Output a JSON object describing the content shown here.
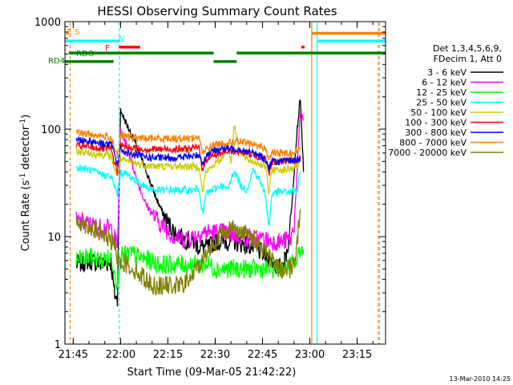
{
  "chart_data": {
    "type": "line",
    "title": "HESSI Observing Summary Count Rates",
    "xlabel": "Start Time (09-Mar-05 21:42:22)",
    "ylabel_main": "Count Rate (s",
    "ylabel_sup": "-1",
    "ylabel_mid": " detector",
    "ylabel_end": ")",
    "y_scale": "log",
    "xlim_minutes": [
      1302.37,
      1404
    ],
    "ylim": [
      1,
      1000
    ],
    "x_ticks": [
      {
        "label": "21:45",
        "value": 1305
      },
      {
        "label": "22:00",
        "value": 1320
      },
      {
        "label": "22:15",
        "value": 1335
      },
      {
        "label": "22:30",
        "value": 1350
      },
      {
        "label": "22:45",
        "value": 1365
      },
      {
        "label": "23:00",
        "value": 1380
      },
      {
        "label": "23:15",
        "value": 1395
      }
    ],
    "y_ticks": [
      {
        "label": "1",
        "value": 1
      },
      {
        "label": "10",
        "value": 10
      },
      {
        "label": "100",
        "value": 100
      },
      {
        "label": "1000",
        "value": 1000
      }
    ],
    "legend_header": [
      "Det 1,3,4,5,6,9,",
      "FDecim 1, Att 0"
    ],
    "legend_position": "right",
    "series": [
      {
        "name": "3 - 6 keV",
        "color": "#000000",
        "x": [
          1306,
          1310,
          1314,
          1317,
          1318,
          1319,
          1320,
          1322,
          1325,
          1328,
          1331,
          1334,
          1337,
          1340,
          1343,
          1345,
          1348,
          1350,
          1353,
          1356,
          1359,
          1362,
          1365,
          1368,
          1370,
          1371,
          1372,
          1373,
          1374,
          1375,
          1376,
          1377,
          1378
        ],
        "y": [
          5.5,
          6,
          5.5,
          5.8,
          3,
          2.5,
          150,
          110,
          70,
          42,
          24,
          15,
          11,
          9.5,
          9,
          8,
          8,
          9,
          9,
          9,
          8.5,
          8,
          7,
          6,
          5,
          5.5,
          6,
          8,
          15,
          40,
          100,
          200,
          40
        ]
      },
      {
        "name": "6 - 12 keV",
        "color": "#ff00ff",
        "x": [
          1306,
          1310,
          1314,
          1317,
          1318,
          1319,
          1320,
          1322,
          1325,
          1328,
          1331,
          1334,
          1337,
          1340,
          1343,
          1346,
          1350,
          1353,
          1356,
          1359,
          1362,
          1365,
          1368,
          1371,
          1374,
          1375,
          1376,
          1377,
          1378
        ],
        "y": [
          14,
          13,
          12,
          12,
          10,
          8,
          100,
          70,
          35,
          20,
          15,
          12,
          10,
          9.5,
          10,
          11,
          11,
          11,
          10.5,
          10,
          9.5,
          9.5,
          9,
          9,
          9.5,
          13,
          40,
          150,
          120
        ]
      },
      {
        "name": "12 - 25 keV",
        "color": "#00ff00",
        "x": [
          1306,
          1310,
          1314,
          1317,
          1318,
          1319,
          1320,
          1323,
          1326,
          1329,
          1332,
          1335,
          1338,
          1341,
          1344,
          1346,
          1348,
          1350,
          1352,
          1354,
          1356,
          1358,
          1360,
          1362,
          1364,
          1366,
          1368,
          1370,
          1372,
          1374,
          1376,
          1377,
          1378
        ],
        "y": [
          6,
          6.5,
          6,
          6.5,
          5,
          3.5,
          6.5,
          7,
          6.5,
          6,
          5.5,
          5.5,
          5.5,
          5.5,
          5.5,
          5.5,
          5.5,
          5,
          5,
          5,
          5,
          5,
          5,
          5,
          5,
          5,
          5,
          5,
          5,
          5.5,
          6,
          8,
          7
        ]
      },
      {
        "name": "25 - 50 keV",
        "color": "#00ffff",
        "x": [
          1306,
          1310,
          1314,
          1317,
          1318,
          1319,
          1320,
          1322,
          1325,
          1328,
          1331,
          1334,
          1337,
          1340,
          1343,
          1345,
          1346,
          1347,
          1348,
          1350,
          1352,
          1354,
          1356,
          1358,
          1360,
          1362,
          1364,
          1366,
          1367,
          1368,
          1370,
          1372,
          1374,
          1376,
          1377
        ],
        "y": [
          44,
          42,
          38,
          36,
          30,
          25,
          40,
          38,
          33,
          29,
          27,
          27,
          27,
          27,
          27,
          28,
          15,
          25,
          26,
          28,
          30,
          27,
          42,
          30,
          27,
          42,
          34,
          24,
          12,
          25,
          26,
          26,
          26,
          27,
          40
        ]
      },
      {
        "name": "50 - 100 keV",
        "color": "#cccc00",
        "x": [
          1306,
          1310,
          1314,
          1317,
          1318,
          1319,
          1320,
          1322,
          1325,
          1328,
          1331,
          1334,
          1337,
          1340,
          1343,
          1345,
          1346,
          1347,
          1348,
          1350,
          1352,
          1354,
          1355,
          1356,
          1358,
          1360,
          1362,
          1364,
          1366,
          1367,
          1368,
          1370,
          1372,
          1374,
          1376,
          1377
        ],
        "y": [
          62,
          60,
          58,
          56,
          45,
          35,
          52,
          50,
          48,
          46,
          45,
          45,
          45,
          45,
          45,
          45,
          25,
          40,
          42,
          48,
          52,
          75,
          48,
          110,
          60,
          52,
          50,
          48,
          45,
          25,
          42,
          42,
          42,
          43,
          45,
          55
        ]
      },
      {
        "name": "100 - 300 keV",
        "color": "#ff0000",
        "x": [
          1306,
          1310,
          1314,
          1317,
          1318,
          1319,
          1320,
          1322,
          1325,
          1328,
          1331,
          1334,
          1337,
          1340,
          1343,
          1345,
          1346,
          1347,
          1348,
          1350,
          1352,
          1354,
          1356,
          1358,
          1360,
          1362,
          1364,
          1366,
          1367,
          1368,
          1370,
          1372,
          1374,
          1376,
          1377
        ],
        "y": [
          70,
          68,
          66,
          65,
          50,
          40,
          70,
          68,
          66,
          65,
          65,
          65,
          65,
          65,
          66,
          68,
          40,
          52,
          55,
          58,
          60,
          62,
          62,
          62,
          60,
          58,
          55,
          52,
          38,
          50,
          50,
          50,
          50,
          52,
          55
        ]
      },
      {
        "name": "300 - 800 keV",
        "color": "#0000ff",
        "x": [
          1306,
          1310,
          1314,
          1317,
          1318,
          1319,
          1320,
          1322,
          1325,
          1328,
          1331,
          1334,
          1337,
          1340,
          1343,
          1345,
          1346,
          1347,
          1348,
          1350,
          1352,
          1354,
          1356,
          1358,
          1360,
          1362,
          1364,
          1366,
          1367,
          1368,
          1370,
          1372,
          1374,
          1376,
          1377
        ],
        "y": [
          80,
          78,
          74,
          72,
          60,
          48,
          65,
          60,
          57,
          55,
          54,
          54,
          54,
          55,
          56,
          58,
          48,
          55,
          60,
          64,
          66,
          66,
          66,
          65,
          62,
          60,
          57,
          52,
          44,
          50,
          50,
          50,
          51,
          52,
          55
        ]
      },
      {
        "name": "800 - 7000 keV",
        "color": "#ff8000",
        "x": [
          1306,
          1310,
          1314,
          1317,
          1318,
          1319,
          1320,
          1322,
          1325,
          1328,
          1331,
          1334,
          1337,
          1340,
          1343,
          1345,
          1346,
          1347,
          1348,
          1350,
          1352,
          1354,
          1356,
          1358,
          1360,
          1362,
          1364,
          1366,
          1367,
          1368,
          1370,
          1372,
          1374,
          1376,
          1377
        ],
        "y": [
          92,
          90,
          86,
          84,
          70,
          55,
          88,
          85,
          83,
          82,
          82,
          82,
          82,
          82,
          83,
          84,
          58,
          65,
          68,
          72,
          74,
          75,
          76,
          76,
          74,
          72,
          70,
          66,
          52,
          60,
          60,
          60,
          60,
          62,
          65
        ]
      },
      {
        "name": "7000 - 20000 keV",
        "color": "#808000",
        "x": [
          1306,
          1308,
          1310,
          1312,
          1314,
          1316,
          1317,
          1318,
          1319,
          1320,
          1322,
          1324,
          1326,
          1328,
          1330,
          1333,
          1336,
          1339,
          1342,
          1345,
          1348,
          1350,
          1352,
          1354,
          1356,
          1358,
          1360,
          1362,
          1364,
          1366,
          1368,
          1370,
          1372,
          1374,
          1375,
          1376,
          1377
        ],
        "y": [
          14,
          13.5,
          12.5,
          11.5,
          10.5,
          9.5,
          9,
          8,
          6.5,
          6,
          5.5,
          5,
          4.5,
          4,
          3.5,
          3.5,
          3.5,
          3.5,
          4,
          5.5,
          7.5,
          9,
          10.5,
          11.5,
          12,
          11.5,
          10.5,
          9.5,
          8.5,
          7.5,
          6,
          5,
          5,
          5,
          6,
          9,
          18
        ]
      }
    ],
    "flag_labels": [
      "E",
      "S",
      "N",
      "F",
      "RDO",
      "RD4"
    ],
    "flags": [
      {
        "label": "S",
        "color": "#ff8000",
        "y": 780,
        "segments": [
          [
            1302.8,
            1303.6
          ],
          [
            1380.5,
            1404
          ]
        ]
      },
      {
        "label": "N",
        "color": "#00ffff",
        "y": 660,
        "segments": [
          [
            1302.4,
            1319.8
          ],
          [
            1382.5,
            1404
          ]
        ]
      },
      {
        "label": "F",
        "color": "#ff0000",
        "y": 580,
        "segments": [
          [
            1319.5,
            1326.2
          ],
          [
            1377.3,
            1378.3
          ]
        ]
      },
      {
        "label": "RDO",
        "color": "#008000",
        "y": 510,
        "segments": [
          [
            1303.6,
            1349.5
          ],
          [
            1356.8,
            1404
          ]
        ]
      },
      {
        "label": "RD4",
        "color": "#008000",
        "y": 425,
        "segments": [
          [
            1302.4,
            1317.8
          ],
          [
            1349.5,
            1356.8
          ]
        ]
      }
    ],
    "vertical_markers": [
      {
        "x": 1302.4,
        "color": "#00ffff",
        "dashed": false
      },
      {
        "x": 1304.0,
        "color": "#ff8000",
        "dashed": true
      },
      {
        "x": 1319.6,
        "color": "#00ffff",
        "dashed": true
      },
      {
        "x": 1380.6,
        "color": "#ff8000",
        "dashed": false
      },
      {
        "x": 1382.3,
        "color": "#00ffff",
        "dashed": false
      },
      {
        "x": 1401.7,
        "color": "#ff8000",
        "dashed": true
      },
      {
        "x": 1402.1,
        "color": "#00ffff",
        "dashed": true
      }
    ]
  },
  "footer_timestamp": "13-Mar-2010 14:25"
}
